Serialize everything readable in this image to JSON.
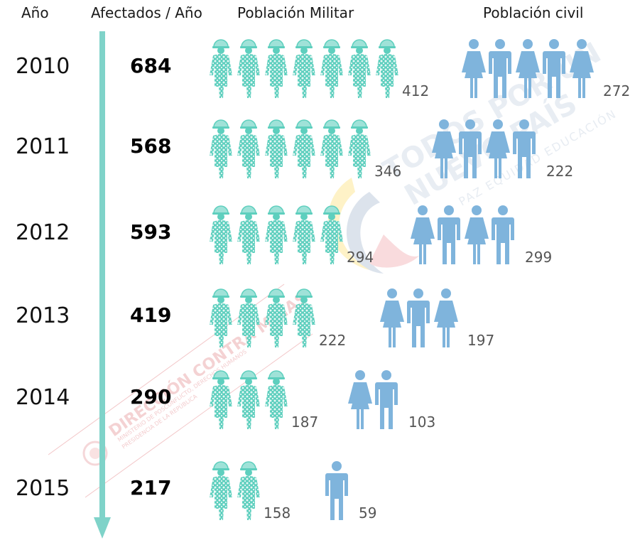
{
  "headers": {
    "year": "Año",
    "affected": "Afectados / Año",
    "military": "Población Militar",
    "civil": "Población civil"
  },
  "watermarks": {
    "main_line1": "TODOS POR UN",
    "main_line2": "NUEVO PAÍS",
    "main_line3": "PAZ EQUIDAD EDUCACIÓN",
    "stamp_line1": "DIRECCIÓN CONTRA MINAS",
    "stamp_line2": "MINISTERIO DE POSCONFLICTO, DERECHOS HUMANOS",
    "stamp_line3": "PRESIDENCIA DE LA REPÚBLICA"
  },
  "colors": {
    "military": "#5ecfbe",
    "military_dots": "#e6f7f4",
    "helmet_light": "#9fe2d8",
    "civil": "#7fb4dc",
    "timeline": "#7fd3c9"
  },
  "icons": {
    "military": "soldier-icon",
    "civil_female": "woman-icon",
    "civil_male": "man-icon"
  },
  "chart_data": {
    "type": "table",
    "title": "",
    "categories": [
      "2010",
      "2011",
      "2012",
      "2013",
      "2014",
      "2015"
    ],
    "series": [
      {
        "name": "Afectados / Año",
        "values": [
          684,
          568,
          593,
          419,
          290,
          217
        ]
      },
      {
        "name": "Población Militar",
        "values": [
          412,
          346,
          294,
          222,
          187,
          158
        ]
      },
      {
        "name": "Población civil",
        "values": [
          272,
          222,
          299,
          197,
          103,
          59
        ]
      }
    ],
    "icon_counts": {
      "military": [
        7,
        6,
        5,
        4,
        3,
        2
      ],
      "civil": [
        5,
        4,
        4,
        3,
        2,
        1
      ]
    }
  }
}
